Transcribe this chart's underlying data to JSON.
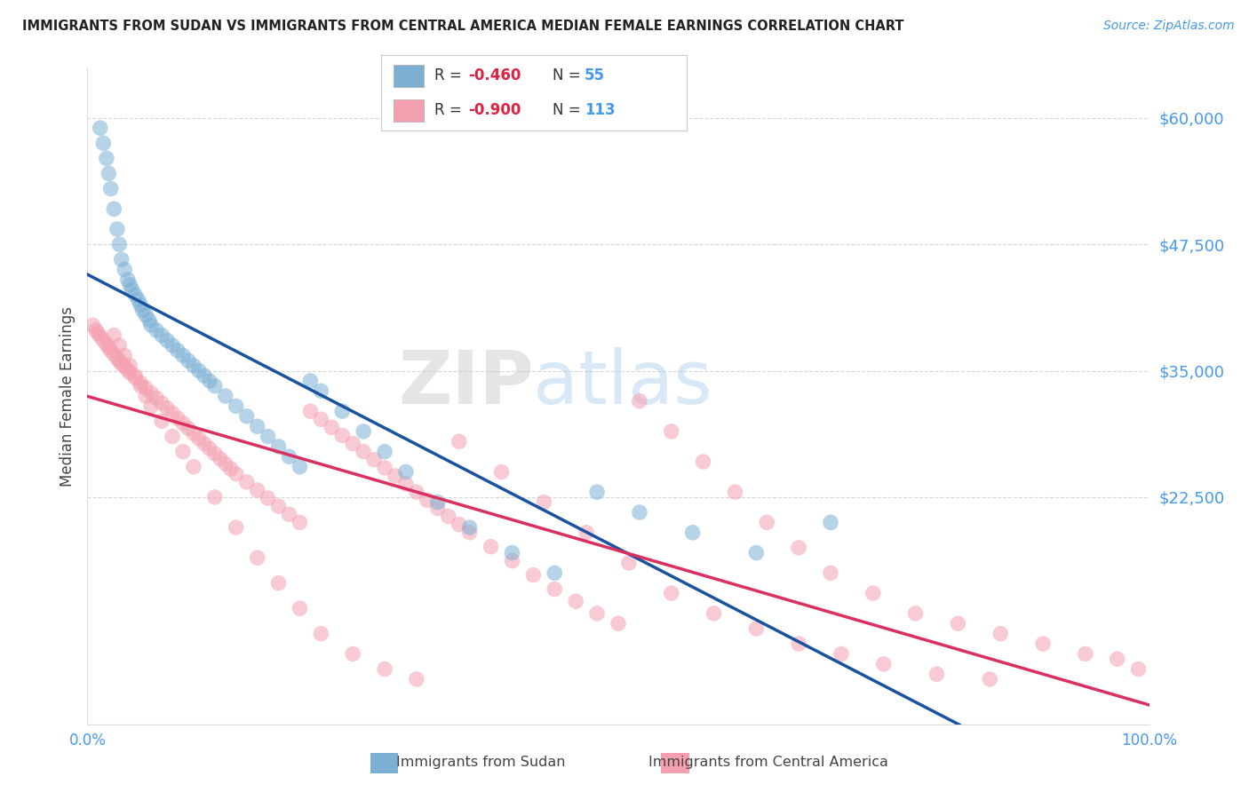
{
  "title": "IMMIGRANTS FROM SUDAN VS IMMIGRANTS FROM CENTRAL AMERICA MEDIAN FEMALE EARNINGS CORRELATION CHART",
  "source": "Source: ZipAtlas.com",
  "ylabel": "Median Female Earnings",
  "y_ticks": [
    0,
    22500,
    35000,
    47500,
    60000
  ],
  "y_tick_labels": [
    "",
    "$22,500",
    "$35,000",
    "$47,500",
    "$60,000"
  ],
  "sudan_color": "#7BAFD4",
  "central_color": "#F4A0B0",
  "sudan_line_color": "#1A52A0",
  "central_line_color": "#D93060",
  "background_color": "#FFFFFF",
  "grid_color": "#CCCCCC",
  "title_color": "#222222",
  "axis_label_color": "#444444",
  "tick_color": "#4499EE",
  "legend_r_color": "#DD2244",
  "legend_n_color": "#4499EE",
  "watermark_zip_color": "#BBBBBB",
  "watermark_atlas_color": "#AACCEE",
  "sudan_x": [
    1.2,
    1.5,
    1.8,
    2.0,
    2.2,
    2.5,
    2.8,
    3.0,
    3.2,
    3.5,
    3.8,
    4.0,
    4.2,
    4.5,
    4.8,
    5.0,
    5.2,
    5.5,
    5.8,
    6.0,
    6.5,
    7.0,
    7.5,
    8.0,
    8.5,
    9.0,
    9.5,
    10.0,
    10.5,
    11.0,
    11.5,
    12.0,
    13.0,
    14.0,
    15.0,
    16.0,
    17.0,
    18.0,
    19.0,
    20.0,
    21.0,
    22.0,
    24.0,
    26.0,
    28.0,
    30.0,
    33.0,
    36.0,
    40.0,
    44.0,
    48.0,
    52.0,
    57.0,
    63.0,
    70.0
  ],
  "sudan_y": [
    59000,
    57500,
    56000,
    54500,
    53000,
    51000,
    49000,
    47500,
    46000,
    45000,
    44000,
    43500,
    43000,
    42500,
    42000,
    41500,
    41000,
    40500,
    40000,
    39500,
    39000,
    38500,
    38000,
    37500,
    37000,
    36500,
    36000,
    35500,
    35000,
    34500,
    34000,
    33500,
    32500,
    31500,
    30500,
    29500,
    28500,
    27500,
    26500,
    25500,
    34000,
    33000,
    31000,
    29000,
    27000,
    25000,
    22000,
    19500,
    17000,
    15000,
    23000,
    21000,
    19000,
    17000,
    20000
  ],
  "central_x": [
    0.5,
    0.8,
    1.0,
    1.2,
    1.5,
    1.8,
    2.0,
    2.2,
    2.5,
    2.8,
    3.0,
    3.2,
    3.5,
    3.8,
    4.0,
    4.5,
    5.0,
    5.5,
    6.0,
    6.5,
    7.0,
    7.5,
    8.0,
    8.5,
    9.0,
    9.5,
    10.0,
    10.5,
    11.0,
    11.5,
    12.0,
    12.5,
    13.0,
    13.5,
    14.0,
    15.0,
    16.0,
    17.0,
    18.0,
    19.0,
    20.0,
    21.0,
    22.0,
    23.0,
    24.0,
    25.0,
    26.0,
    27.0,
    28.0,
    29.0,
    30.0,
    31.0,
    32.0,
    33.0,
    34.0,
    35.0,
    36.0,
    38.0,
    40.0,
    42.0,
    44.0,
    46.0,
    48.0,
    50.0,
    52.0,
    55.0,
    58.0,
    61.0,
    64.0,
    67.0,
    70.0,
    74.0,
    78.0,
    82.0,
    86.0,
    90.0,
    94.0,
    97.0,
    99.0,
    2.5,
    3.0,
    3.5,
    4.0,
    4.5,
    5.0,
    5.5,
    6.0,
    7.0,
    8.0,
    9.0,
    10.0,
    12.0,
    14.0,
    16.0,
    18.0,
    20.0,
    22.0,
    25.0,
    28.0,
    31.0,
    35.0,
    39.0,
    43.0,
    47.0,
    51.0,
    55.0,
    59.0,
    63.0,
    67.0,
    71.0,
    75.0,
    80.0,
    85.0
  ],
  "central_y": [
    39500,
    39000,
    38700,
    38400,
    38000,
    37600,
    37300,
    37000,
    36600,
    36200,
    36000,
    35700,
    35400,
    35100,
    34800,
    34300,
    33800,
    33300,
    32800,
    32300,
    31800,
    31300,
    30800,
    30300,
    29800,
    29300,
    28800,
    28300,
    27800,
    27300,
    26800,
    26300,
    25800,
    25300,
    24800,
    24000,
    23200,
    22400,
    21600,
    20800,
    20000,
    31000,
    30200,
    29400,
    28600,
    27800,
    27000,
    26200,
    25400,
    24600,
    23800,
    23000,
    22200,
    21400,
    20600,
    19800,
    19000,
    17600,
    16200,
    14800,
    13400,
    12200,
    11000,
    10000,
    32000,
    29000,
    26000,
    23000,
    20000,
    17500,
    15000,
    13000,
    11000,
    10000,
    9000,
    8000,
    7000,
    6500,
    5500,
    38500,
    37500,
    36500,
    35500,
    34500,
    33500,
    32500,
    31500,
    30000,
    28500,
    27000,
    25500,
    22500,
    19500,
    16500,
    14000,
    11500,
    9000,
    7000,
    5500,
    4500,
    28000,
    25000,
    22000,
    19000,
    16000,
    13000,
    11000,
    9500,
    8000,
    7000,
    6000,
    5000,
    4500
  ]
}
